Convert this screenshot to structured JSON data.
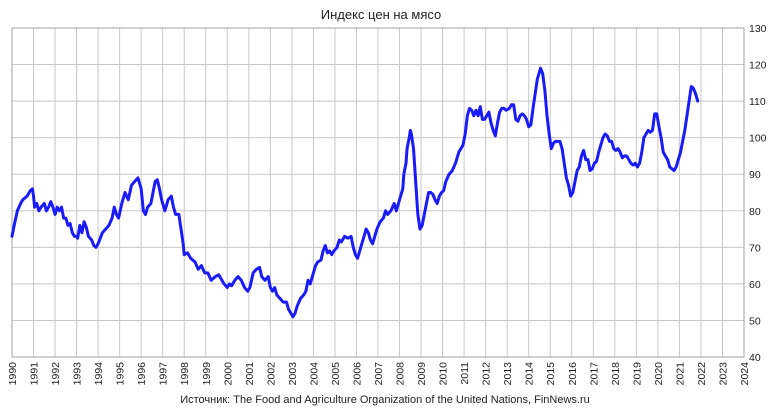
{
  "chart_data": {
    "type": "line",
    "title": "Индекс цен на мясо",
    "source": "Источник: The Food and Agriculture Organization of the United Nations, FinNews.ru",
    "xlabel": "",
    "ylabel": "",
    "xlim": [
      1990,
      2024
    ],
    "ylim": [
      40,
      130
    ],
    "y_axis_side": "right",
    "grid": true,
    "legend": "none",
    "x_ticks": [
      "1990",
      "1991",
      "1992",
      "1993",
      "1994",
      "1995",
      "1996",
      "1997",
      "1998",
      "1999",
      "2000",
      "2001",
      "2002",
      "2003",
      "2004",
      "2005",
      "2006",
      "2007",
      "2008",
      "2009",
      "2010",
      "2011",
      "2012",
      "2013",
      "2014",
      "2015",
      "2016",
      "2017",
      "2018",
      "2019",
      "2020",
      "2021",
      "2022",
      "2023",
      "2024"
    ],
    "y_ticks": [
      "40",
      "50",
      "60",
      "70",
      "80",
      "90",
      "100",
      "110",
      "120",
      "130"
    ],
    "colors": {
      "line": "#1a1aff",
      "grid": "#c8c8c8",
      "frame": "#a0a0a0"
    },
    "series": [
      {
        "points": [
          [
            1990.0,
            73
          ],
          [
            1990.1,
            76
          ],
          [
            1990.25,
            80
          ],
          [
            1990.4,
            82
          ],
          [
            1990.5,
            83
          ],
          [
            1990.7,
            84
          ],
          [
            1990.85,
            85.5
          ],
          [
            1990.95,
            86
          ],
          [
            1991.0,
            84
          ],
          [
            1991.05,
            81
          ],
          [
            1991.15,
            82
          ],
          [
            1991.25,
            80
          ],
          [
            1991.35,
            81
          ],
          [
            1991.5,
            82
          ],
          [
            1991.6,
            80
          ],
          [
            1991.7,
            81
          ],
          [
            1991.8,
            82.5
          ],
          [
            1991.9,
            81
          ],
          [
            1992.0,
            79
          ],
          [
            1992.1,
            81
          ],
          [
            1992.2,
            80
          ],
          [
            1992.3,
            81
          ],
          [
            1992.4,
            78
          ],
          [
            1992.5,
            78
          ],
          [
            1992.6,
            76
          ],
          [
            1992.7,
            76.5
          ],
          [
            1992.8,
            74
          ],
          [
            1992.9,
            73
          ],
          [
            1993.0,
            73
          ],
          [
            1993.05,
            72.5
          ],
          [
            1993.15,
            76
          ],
          [
            1993.25,
            74
          ],
          [
            1993.35,
            77
          ],
          [
            1993.45,
            75.5
          ],
          [
            1993.55,
            73
          ],
          [
            1993.7,
            72
          ],
          [
            1993.8,
            70.5
          ],
          [
            1993.9,
            70
          ],
          [
            1994.0,
            71
          ],
          [
            1994.2,
            74
          ],
          [
            1994.35,
            75
          ],
          [
            1994.5,
            76
          ],
          [
            1994.65,
            78
          ],
          [
            1994.75,
            81
          ],
          [
            1994.85,
            79
          ],
          [
            1994.95,
            78
          ],
          [
            1995.1,
            82
          ],
          [
            1995.25,
            85
          ],
          [
            1995.4,
            83
          ],
          [
            1995.55,
            87
          ],
          [
            1995.7,
            88
          ],
          [
            1995.85,
            89
          ],
          [
            1996.0,
            86
          ],
          [
            1996.1,
            80
          ],
          [
            1996.2,
            79
          ],
          [
            1996.3,
            81
          ],
          [
            1996.45,
            82
          ],
          [
            1996.55,
            85
          ],
          [
            1996.65,
            88
          ],
          [
            1996.75,
            88.5
          ],
          [
            1996.85,
            86
          ],
          [
            1996.95,
            83
          ],
          [
            1997.1,
            80
          ],
          [
            1997.25,
            83
          ],
          [
            1997.4,
            84
          ],
          [
            1997.5,
            81
          ],
          [
            1997.6,
            79
          ],
          [
            1997.75,
            79
          ],
          [
            1997.85,
            75
          ],
          [
            1997.95,
            71
          ],
          [
            1998.0,
            68
          ],
          [
            1998.15,
            68.5
          ],
          [
            1998.3,
            67
          ],
          [
            1998.5,
            66
          ],
          [
            1998.65,
            64
          ],
          [
            1998.8,
            65
          ],
          [
            1998.95,
            63
          ],
          [
            1999.1,
            63
          ],
          [
            1999.25,
            61
          ],
          [
            1999.45,
            62
          ],
          [
            1999.6,
            62.5
          ],
          [
            1999.75,
            61
          ],
          [
            1999.85,
            60
          ],
          [
            2000.0,
            59
          ],
          [
            2000.1,
            60
          ],
          [
            2000.2,
            59.5
          ],
          [
            2000.35,
            61
          ],
          [
            2000.5,
            62
          ],
          [
            2000.65,
            61
          ],
          [
            2000.8,
            59
          ],
          [
            2000.95,
            58
          ],
          [
            2001.05,
            59
          ],
          [
            2001.2,
            63
          ],
          [
            2001.35,
            64
          ],
          [
            2001.5,
            64.5
          ],
          [
            2001.6,
            62
          ],
          [
            2001.75,
            61
          ],
          [
            2001.9,
            62
          ],
          [
            2002.0,
            59
          ],
          [
            2002.1,
            58
          ],
          [
            2002.2,
            59
          ],
          [
            2002.3,
            57
          ],
          [
            2002.45,
            56
          ],
          [
            2002.6,
            55
          ],
          [
            2002.75,
            55
          ],
          [
            2002.85,
            53
          ],
          [
            2002.95,
            52
          ],
          [
            2003.05,
            51
          ],
          [
            2003.15,
            52
          ],
          [
            2003.25,
            54
          ],
          [
            2003.4,
            56
          ],
          [
            2003.55,
            57
          ],
          [
            2003.65,
            58
          ],
          [
            2003.75,
            61
          ],
          [
            2003.85,
            60
          ],
          [
            2003.95,
            62
          ],
          [
            2004.1,
            65
          ],
          [
            2004.2,
            66
          ],
          [
            2004.35,
            66.5
          ],
          [
            2004.45,
            69
          ],
          [
            2004.55,
            70.5
          ],
          [
            2004.65,
            68.5
          ],
          [
            2004.75,
            69
          ],
          [
            2004.85,
            68
          ],
          [
            2004.95,
            69
          ],
          [
            2005.1,
            70
          ],
          [
            2005.2,
            72
          ],
          [
            2005.3,
            71.5
          ],
          [
            2005.45,
            73
          ],
          [
            2005.6,
            72.5
          ],
          [
            2005.75,
            73
          ],
          [
            2005.85,
            70
          ],
          [
            2005.95,
            68
          ],
          [
            2006.05,
            67
          ],
          [
            2006.2,
            70
          ],
          [
            2006.35,
            73
          ],
          [
            2006.45,
            75
          ],
          [
            2006.55,
            74
          ],
          [
            2006.65,
            72
          ],
          [
            2006.75,
            71
          ],
          [
            2006.85,
            73
          ],
          [
            2006.95,
            75
          ],
          [
            2007.1,
            77
          ],
          [
            2007.25,
            78
          ],
          [
            2007.35,
            80
          ],
          [
            2007.45,
            79
          ],
          [
            2007.6,
            80
          ],
          [
            2007.75,
            82
          ],
          [
            2007.85,
            80
          ],
          [
            2007.95,
            82
          ],
          [
            2008.05,
            84
          ],
          [
            2008.15,
            86
          ],
          [
            2008.2,
            90
          ],
          [
            2008.3,
            93
          ],
          [
            2008.35,
            97
          ],
          [
            2008.45,
            100
          ],
          [
            2008.5,
            102
          ],
          [
            2008.55,
            101
          ],
          [
            2008.65,
            97
          ],
          [
            2008.75,
            88
          ],
          [
            2008.85,
            79
          ],
          [
            2008.95,
            75
          ],
          [
            2009.05,
            76
          ],
          [
            2009.15,
            79
          ],
          [
            2009.25,
            82
          ],
          [
            2009.35,
            85
          ],
          [
            2009.45,
            85
          ],
          [
            2009.55,
            84.5
          ],
          [
            2009.65,
            83
          ],
          [
            2009.75,
            82
          ],
          [
            2009.85,
            84
          ],
          [
            2009.95,
            85
          ],
          [
            2010.05,
            85.5
          ],
          [
            2010.15,
            88
          ],
          [
            2010.3,
            90
          ],
          [
            2010.45,
            91
          ],
          [
            2010.6,
            93
          ],
          [
            2010.75,
            96
          ],
          [
            2010.85,
            97
          ],
          [
            2010.95,
            98
          ],
          [
            2011.05,
            101
          ],
          [
            2011.15,
            106
          ],
          [
            2011.25,
            108
          ],
          [
            2011.35,
            107.5
          ],
          [
            2011.45,
            106
          ],
          [
            2011.55,
            107.5
          ],
          [
            2011.65,
            106
          ],
          [
            2011.75,
            108.5
          ],
          [
            2011.85,
            105
          ],
          [
            2011.95,
            105
          ],
          [
            2012.05,
            106
          ],
          [
            2012.15,
            107
          ],
          [
            2012.25,
            104
          ],
          [
            2012.35,
            102
          ],
          [
            2012.45,
            100.5
          ],
          [
            2012.55,
            104
          ],
          [
            2012.65,
            107
          ],
          [
            2012.75,
            108
          ],
          [
            2012.85,
            108
          ],
          [
            2012.95,
            107.5
          ],
          [
            2013.1,
            108
          ],
          [
            2013.2,
            109
          ],
          [
            2013.3,
            109
          ],
          [
            2013.4,
            105
          ],
          [
            2013.5,
            104.5
          ],
          [
            2013.6,
            106
          ],
          [
            2013.7,
            106.5
          ],
          [
            2013.8,
            106
          ],
          [
            2013.9,
            105
          ],
          [
            2014.0,
            103
          ],
          [
            2014.1,
            103.5
          ],
          [
            2014.2,
            108
          ],
          [
            2014.3,
            112
          ],
          [
            2014.4,
            116
          ],
          [
            2014.5,
            118
          ],
          [
            2014.55,
            119
          ],
          [
            2014.65,
            117.5
          ],
          [
            2014.75,
            113
          ],
          [
            2014.85,
            106
          ],
          [
            2014.95,
            101
          ],
          [
            2015.05,
            97
          ],
          [
            2015.15,
            98.5
          ],
          [
            2015.25,
            99
          ],
          [
            2015.35,
            99
          ],
          [
            2015.45,
            99
          ],
          [
            2015.55,
            97
          ],
          [
            2015.65,
            93
          ],
          [
            2015.75,
            89
          ],
          [
            2015.85,
            87
          ],
          [
            2015.95,
            84
          ],
          [
            2016.05,
            85
          ],
          [
            2016.15,
            88
          ],
          [
            2016.25,
            91
          ],
          [
            2016.35,
            92
          ],
          [
            2016.45,
            95
          ],
          [
            2016.55,
            96.5
          ],
          [
            2016.65,
            94
          ],
          [
            2016.75,
            94
          ],
          [
            2016.85,
            91
          ],
          [
            2016.95,
            91.5
          ],
          [
            2017.05,
            93
          ],
          [
            2017.15,
            93.5
          ],
          [
            2017.25,
            96
          ],
          [
            2017.35,
            98
          ],
          [
            2017.45,
            100
          ],
          [
            2017.55,
            101
          ],
          [
            2017.65,
            100.5
          ],
          [
            2017.75,
            99
          ],
          [
            2017.85,
            99
          ],
          [
            2017.95,
            97
          ],
          [
            2018.05,
            96.5
          ],
          [
            2018.15,
            97
          ],
          [
            2018.25,
            96
          ],
          [
            2018.35,
            94.5
          ],
          [
            2018.45,
            95
          ],
          [
            2018.55,
            95
          ],
          [
            2018.65,
            94
          ],
          [
            2018.75,
            93
          ],
          [
            2018.85,
            92.5
          ],
          [
            2018.95,
            93
          ],
          [
            2019.05,
            92
          ],
          [
            2019.15,
            93
          ],
          [
            2019.25,
            96
          ],
          [
            2019.35,
            100
          ],
          [
            2019.45,
            101
          ],
          [
            2019.55,
            102
          ],
          [
            2019.65,
            101.5
          ],
          [
            2019.75,
            102
          ],
          [
            2019.85,
            106.5
          ],
          [
            2019.95,
            106.5
          ],
          [
            2020.05,
            103
          ],
          [
            2020.15,
            100
          ],
          [
            2020.25,
            96
          ],
          [
            2020.35,
            95
          ],
          [
            2020.45,
            94
          ],
          [
            2020.55,
            92
          ],
          [
            2020.65,
            91.5
          ],
          [
            2020.75,
            91
          ],
          [
            2020.85,
            92
          ],
          [
            2020.95,
            94
          ],
          [
            2021.05,
            96
          ],
          [
            2021.15,
            99
          ],
          [
            2021.25,
            102
          ],
          [
            2021.35,
            106
          ],
          [
            2021.45,
            110
          ],
          [
            2021.55,
            114
          ],
          [
            2021.65,
            113.5
          ],
          [
            2021.75,
            112
          ],
          [
            2021.85,
            110
          ]
        ]
      }
    ]
  }
}
